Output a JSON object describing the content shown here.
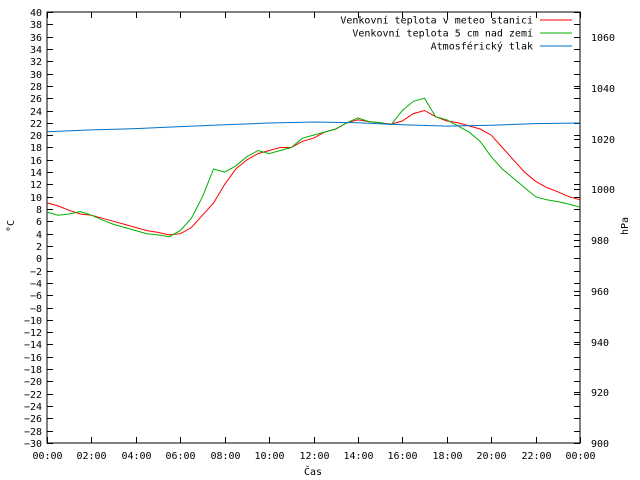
{
  "chart_data": {
    "type": "line",
    "xlabel": "Čas",
    "ylabel_left": "°C",
    "ylabel_right": "hPa",
    "x_ticks": [
      "00:00",
      "02:00",
      "04:00",
      "06:00",
      "08:00",
      "10:00",
      "12:00",
      "14:00",
      "16:00",
      "18:00",
      "20:00",
      "22:00",
      "00:00"
    ],
    "xlim_hours": [
      0,
      24
    ],
    "ylim_left": [
      -30,
      40
    ],
    "ylim_right": [
      900,
      1070
    ],
    "y_left_ticks": [
      40,
      38,
      36,
      34,
      32,
      30,
      28,
      26,
      24,
      22,
      20,
      18,
      16,
      14,
      12,
      10,
      8,
      6,
      4,
      2,
      0,
      -2,
      -4,
      -6,
      -8,
      -10,
      -12,
      -14,
      -16,
      -18,
      -20,
      -22,
      -24,
      -26,
      -28,
      -30
    ],
    "y_right_ticks": [
      1060,
      1040,
      1020,
      1000,
      980,
      960,
      940,
      920,
      900
    ],
    "grid": false,
    "legend": "top-right",
    "series": [
      {
        "name": "Venkovní teplota v meteo stanici",
        "color": "#ff0000",
        "axis": "left",
        "x": [
          0,
          0.5,
          1,
          1.5,
          2,
          2.5,
          3,
          3.5,
          4,
          4.5,
          5,
          5.5,
          6,
          6.5,
          7,
          7.5,
          8,
          8.5,
          9,
          9.5,
          10,
          10.5,
          11,
          11.5,
          12,
          12.5,
          13,
          13.5,
          14,
          14.5,
          15,
          15.5,
          16,
          16.5,
          17,
          17.5,
          18,
          18.5,
          19,
          19.5,
          20,
          20.5,
          21,
          21.5,
          22,
          22.5,
          23,
          23.5,
          24
        ],
        "y": [
          9,
          8.5,
          7.8,
          7.2,
          7,
          6.5,
          6,
          5.5,
          5,
          4.5,
          4.2,
          3.8,
          4,
          5,
          7,
          9,
          12,
          14.5,
          16,
          17,
          17.5,
          18,
          18,
          19,
          19.5,
          20.5,
          21,
          22,
          22.5,
          22.2,
          22,
          21.8,
          22.3,
          23.5,
          24,
          23,
          22.3,
          22,
          21.5,
          21,
          20,
          18,
          16,
          14,
          12.5,
          11.5,
          10.8,
          10,
          9.5
        ]
      },
      {
        "name": "Venkovní teplota 5 cm nad zemí",
        "color": "#00b000",
        "axis": "left",
        "x": [
          0,
          0.5,
          1,
          1.5,
          2,
          2.5,
          3,
          3.5,
          4,
          4.5,
          5,
          5.5,
          6,
          6.5,
          7,
          7.5,
          8,
          8.5,
          9,
          9.5,
          10,
          10.5,
          11,
          11.5,
          12,
          12.5,
          13,
          13.5,
          14,
          14.5,
          15,
          15.5,
          16,
          16.5,
          17,
          17.5,
          18,
          18.5,
          19,
          19.5,
          20,
          20.5,
          21,
          21.5,
          22,
          22.5,
          23,
          23.5,
          24
        ],
        "y": [
          7.5,
          7,
          7.2,
          7.6,
          7,
          6.2,
          5.5,
          5,
          4.5,
          4,
          3.8,
          3.5,
          4.5,
          6.5,
          10,
          14.5,
          14,
          15,
          16.5,
          17.5,
          17,
          17.5,
          18,
          19.5,
          20,
          20.5,
          21,
          22,
          22.8,
          22.2,
          22,
          21.7,
          24,
          25.5,
          26,
          23,
          22.5,
          21.5,
          20.5,
          19,
          16.5,
          14.5,
          13,
          11.5,
          10,
          9.5,
          9.2,
          8.8,
          8.3
        ]
      },
      {
        "name": "Atmosférický tlak",
        "color": "#0072c6",
        "axis": "right",
        "x": [
          0,
          2,
          4,
          6,
          8,
          10,
          12,
          14,
          16,
          18,
          20,
          22,
          24
        ],
        "y": [
          1022.8,
          1023.5,
          1024,
          1024.8,
          1025.5,
          1026.2,
          1026.6,
          1026.3,
          1025.5,
          1025,
          1025.3,
          1026,
          1026.2
        ]
      }
    ]
  }
}
